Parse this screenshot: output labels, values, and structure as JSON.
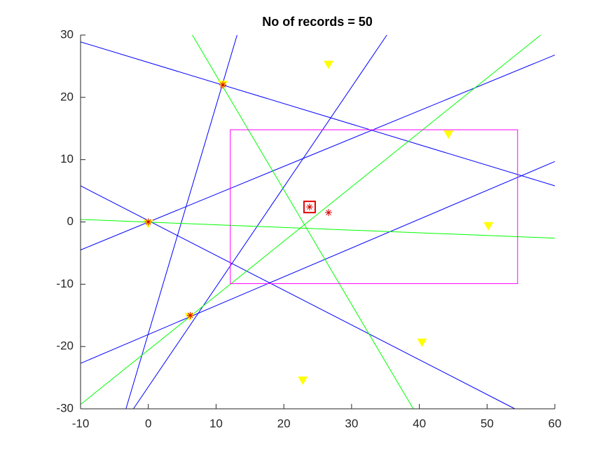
{
  "chart_data": {
    "type": "line",
    "title": "No of records = 50",
    "xlim": [
      -10,
      60
    ],
    "xticks": [
      -10,
      0,
      10,
      20,
      30,
      40,
      50,
      60
    ],
    "ylim": [
      -30,
      30
    ],
    "yticks": [
      -30,
      -20,
      -10,
      0,
      10,
      20,
      30
    ],
    "series": [
      {
        "color": "#0000ff",
        "x": [
          -10,
          60
        ],
        "values": [
          28.9,
          5.8
        ]
      },
      {
        "color": "#0000ff",
        "x": [
          -3.3,
          13.1
        ],
        "values": [
          -30,
          30
        ]
      },
      {
        "color": "#0000ff",
        "x": [
          -2.2,
          35.2
        ],
        "values": [
          -30,
          30
        ]
      },
      {
        "color": "#0000ff",
        "x": [
          -10,
          60
        ],
        "values": [
          -4.5,
          26.8
        ]
      },
      {
        "color": "#0000ff",
        "x": [
          -10,
          54.1
        ],
        "values": [
          5.8,
          -30
        ]
      },
      {
        "color": "#0000ff",
        "x": [
          -10,
          60
        ],
        "values": [
          -22.7,
          9.7
        ]
      },
      {
        "color": "#00ff00",
        "x": [
          6.5,
          39.1
        ],
        "values": [
          30,
          -30
        ]
      },
      {
        "color": "#00ff00",
        "x": [
          -10,
          57.9
        ],
        "values": [
          -29.3,
          30
        ]
      },
      {
        "color": "#00ff00",
        "x": [
          -10,
          60
        ],
        "values": [
          0.4,
          -2.6
        ]
      }
    ],
    "rectangle": {
      "color": "#ff00ff",
      "x": [
        12.1,
        54.5
      ],
      "values": [
        14.8,
        -9.9
      ]
    },
    "markers": [
      {
        "marker": "triangle-down",
        "color": "#ffff00",
        "x": [
          26.6,
          44.3,
          50.2,
          40.4,
          22.8,
          11,
          0,
          6.1
        ],
        "values": [
          25.2,
          14.0,
          -0.7,
          -19.4,
          -25.5,
          22,
          -0.3,
          -15.3
        ]
      },
      {
        "marker": "star",
        "color": "#d40000",
        "x": [
          11,
          0,
          6.2,
          26.6,
          23.8
        ],
        "values": [
          22,
          0,
          -15,
          1.5,
          2.4
        ]
      },
      {
        "marker": "square",
        "color": "#e00000",
        "x": [
          23.8
        ],
        "values": [
          2.4
        ]
      }
    ]
  }
}
